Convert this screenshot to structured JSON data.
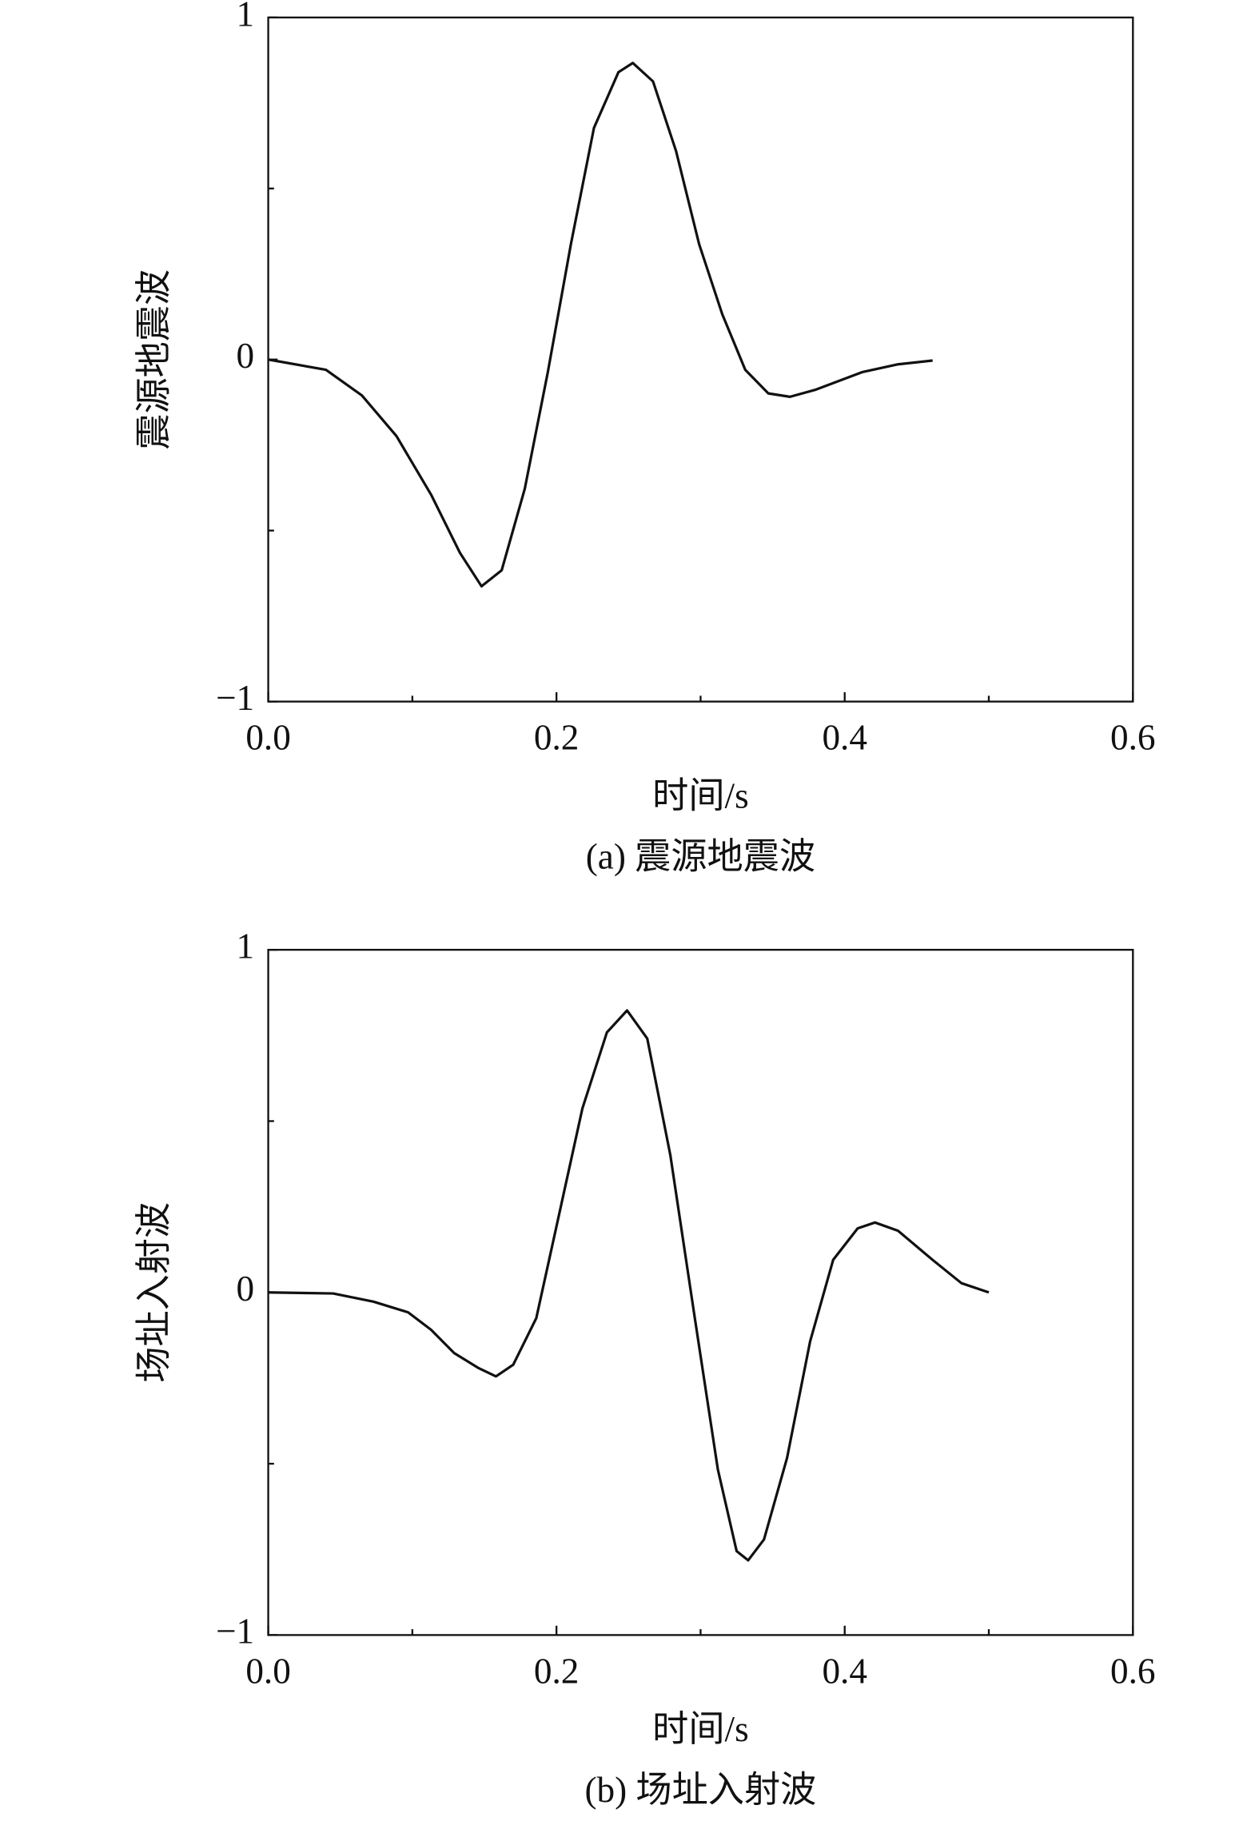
{
  "chart_data": [
    {
      "type": "line",
      "caption": "(a) 震源地震波",
      "xlabel": "时间/s",
      "ylabel": "震源地震波",
      "x": [
        0,
        0.04,
        0.065,
        0.089,
        0.113,
        0.133,
        0.148,
        0.162,
        0.178,
        0.194,
        0.21,
        0.226,
        0.243,
        0.253,
        0.267,
        0.283,
        0.299,
        0.315,
        0.331,
        0.347,
        0.362,
        0.38,
        0.412,
        0.437,
        0.461
      ],
      "values": [
        0,
        -0.03,
        -0.105,
        -0.224,
        -0.395,
        -0.565,
        -0.663,
        -0.616,
        -0.378,
        -0.037,
        0.337,
        0.677,
        0.84,
        0.867,
        0.813,
        0.609,
        0.337,
        0.133,
        -0.03,
        -0.099,
        -0.109,
        -0.088,
        -0.037,
        -0.014,
        -0.003
      ],
      "color": "#111111",
      "xlim": [
        0,
        0.6
      ],
      "xticks": [
        {
          "value": 0,
          "label": "0.0"
        },
        {
          "value": 0.2,
          "label": "0.2"
        },
        {
          "value": 0.4,
          "label": "0.4"
        },
        {
          "value": 0.6,
          "label": "0.6"
        }
      ],
      "xminorticks": [
        0.1,
        0.3,
        0.5
      ],
      "ylim": [
        -1,
        1
      ],
      "yticks": [
        {
          "value": -1,
          "label": "−1"
        },
        0,
        1
      ],
      "yminorticks": [
        -0.5,
        0.5
      ]
    },
    {
      "type": "line",
      "caption": "(b) 场址入射波",
      "xlabel": "时间/s",
      "ylabel": "场址入射波",
      "x": [
        0,
        0.045,
        0.073,
        0.097,
        0.113,
        0.129,
        0.146,
        0.158,
        0.17,
        0.186,
        0.202,
        0.218,
        0.235,
        0.249,
        0.263,
        0.279,
        0.296,
        0.312,
        0.325,
        0.333,
        0.344,
        0.36,
        0.376,
        0.392,
        0.409,
        0.421,
        0.437,
        0.461,
        0.481,
        0.5
      ],
      "values": [
        0,
        -0.003,
        -0.027,
        -0.058,
        -0.109,
        -0.177,
        -0.221,
        -0.245,
        -0.211,
        -0.075,
        0.231,
        0.537,
        0.759,
        0.823,
        0.741,
        0.401,
        -0.075,
        -0.517,
        -0.755,
        -0.782,
        -0.721,
        -0.483,
        -0.143,
        0.095,
        0.187,
        0.204,
        0.18,
        0.095,
        0.027,
        0
      ],
      "color": "#111111",
      "xlim": [
        0,
        0.6
      ],
      "xticks": [
        {
          "value": 0,
          "label": "0.0"
        },
        {
          "value": 0.2,
          "label": "0.2"
        },
        {
          "value": 0.4,
          "label": "0.4"
        },
        {
          "value": 0.6,
          "label": "0.6"
        }
      ],
      "xminorticks": [
        0.1,
        0.3,
        0.5
      ],
      "ylim": [
        -1,
        1
      ],
      "yticks": [
        {
          "value": -1,
          "label": "−1"
        },
        0,
        1
      ],
      "yminorticks": [
        -0.5,
        0.5
      ]
    }
  ]
}
